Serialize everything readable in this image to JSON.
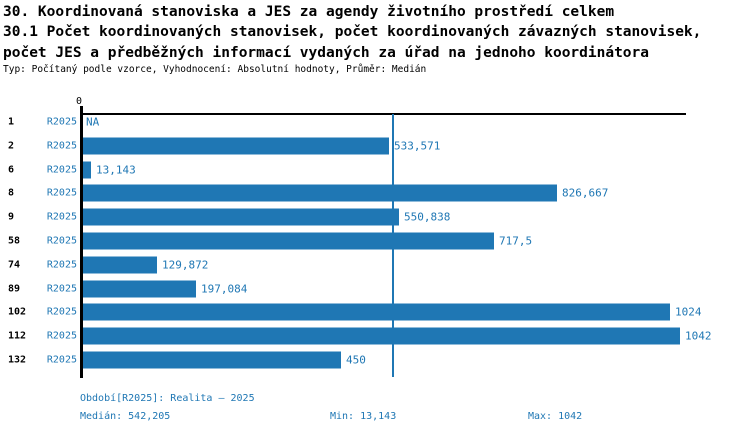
{
  "title": {
    "line1": "30. Koordinovaná stanoviska a JES za agendy životního prostředí celkem",
    "line2": "30.1 Počet koordinovaných stanovisek, počet koordinovaných závazných stanovisek,",
    "line3": "počet JES a předběžných informací vydaných za úřad na jednoho koordinátora",
    "meta": "Typ: Počítaný podle vzorce, Vyhodnocení: Absolutní hodnoty, Průměr: Medián"
  },
  "chart_data": {
    "type": "bar",
    "orientation": "horizontal",
    "title": "30.1 Počet koordinovaných stanovisek, počet koordinovaných závazných stanovisek, počet JES a předběžných informací vydaných za úřad na jednoho koordinátora",
    "categories": [
      "1",
      "2",
      "6",
      "8",
      "9",
      "58",
      "74",
      "89",
      "102",
      "112",
      "132"
    ],
    "series": [
      {
        "name": "R2025",
        "values": [
          null,
          533.571,
          13.143,
          826.667,
          550.838,
          717.5,
          129.872,
          197.084,
          1024,
          1042,
          450
        ],
        "value_labels": [
          "NA",
          "533,571",
          "13,143",
          "826,667",
          "550,838",
          "717,5",
          "129,872",
          "197,084",
          "1024",
          "1042",
          "450"
        ]
      }
    ],
    "xlabel": "",
    "ylabel": "",
    "xlim": [
      0,
      1055
    ],
    "x_tick_labels": [
      "0"
    ],
    "grid": false,
    "legend_position": "none",
    "median_line_value": 542.205,
    "bar_color": "#1F77B4"
  },
  "axis": {
    "zero_label": "0"
  },
  "footer": {
    "period": "Období[R2025]: Realita – 2025",
    "median": "Medián: 542,205",
    "min": "Min: 13,143",
    "max": "Max: 1042"
  },
  "colors": {
    "accent": "#1F77B4",
    "text": "#000000"
  }
}
